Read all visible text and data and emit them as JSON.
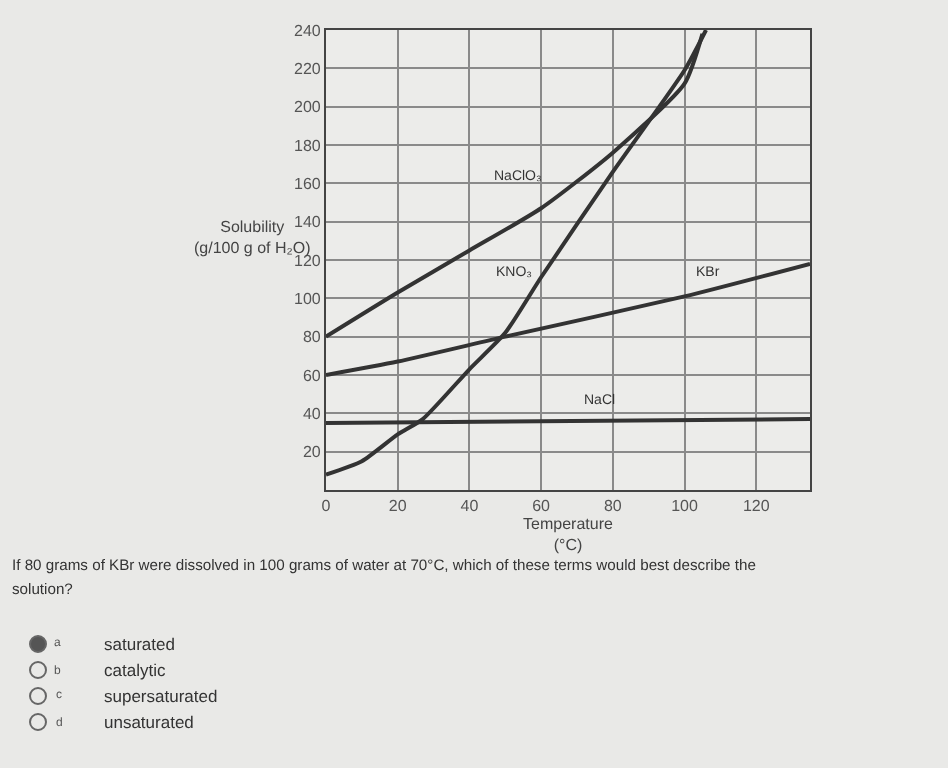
{
  "chart_data": {
    "type": "line",
    "xlabel": "Temperature\n(°C)",
    "ylabel": "Solubility\n(g/100 g of H₂O)",
    "xlim": [
      0,
      135
    ],
    "xticks": [
      0,
      20,
      40,
      60,
      80,
      100,
      120
    ],
    "ylim": [
      0,
      240
    ],
    "yticks": [
      {
        "value": 0,
        "label": null
      },
      20,
      40,
      60,
      80,
      100,
      120,
      140,
      160,
      180,
      200,
      220,
      240
    ],
    "grid": true,
    "legend": false,
    "marker": "none",
    "line_style": "solid",
    "series": [
      {
        "name": "NaClO₃",
        "color": "#333333",
        "x": [
          0,
          20,
          40,
          60,
          80,
          100,
          105
        ],
        "values": [
          80,
          103,
          125,
          147,
          176,
          212,
          238
        ]
      },
      {
        "name": "KNO₃",
        "color": "#333333",
        "x": [
          0,
          10,
          20,
          27,
          40,
          50,
          60,
          80,
          100,
          106
        ],
        "values": [
          8,
          15,
          29,
          37,
          63,
          82,
          111,
          166,
          219,
          240
        ]
      },
      {
        "name": "KBr",
        "color": "#333333",
        "x": [
          0,
          20,
          50,
          100,
          135
        ],
        "values": [
          60,
          67,
          80,
          101,
          118
        ]
      },
      {
        "name": "NaCl",
        "color": "#333333",
        "x": [
          0,
          135
        ],
        "values": [
          35,
          37
        ]
      }
    ],
    "annotations": [
      "If 80 grams of KBr were dissolved in 100 grams of water at 70°C, which of these terms would best describe the",
      "solution?",
      "a",
      "saturated",
      "b",
      "catalytic",
      "c",
      "supersaturated",
      "d",
      "unsaturated"
    ]
  }
}
